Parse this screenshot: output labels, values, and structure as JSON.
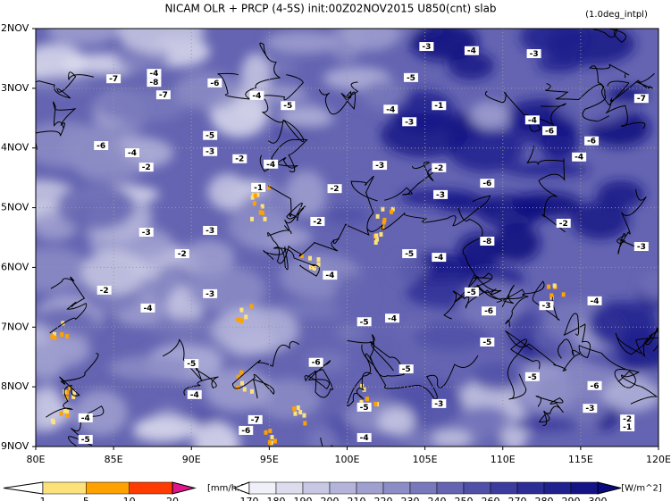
{
  "chart_data": {
    "type": "hovmoller",
    "title": "NICAM   OLR + PRCP (4-5S) init:00Z02NOV2015 U850(cnt) slab",
    "subtitle": "(1.0deg_intpl)",
    "xlim": [
      80,
      120
    ],
    "xticks": [
      {
        "value": 80,
        "label": "80E"
      },
      {
        "value": 85,
        "label": "85E"
      },
      {
        "value": 90,
        "label": "90E"
      },
      {
        "value": 95,
        "label": "95E"
      },
      {
        "value": 100,
        "label": "100E"
      },
      {
        "value": 105,
        "label": "105E"
      },
      {
        "value": 110,
        "label": "110E"
      },
      {
        "value": 115,
        "label": "115E"
      },
      {
        "value": 120,
        "label": "120E"
      }
    ],
    "ylim": [
      2,
      9
    ],
    "yticks": [
      {
        "value": 2,
        "label": "2NOV"
      },
      {
        "value": 3,
        "label": "3NOV"
      },
      {
        "value": 4,
        "label": "4NOV"
      },
      {
        "value": 5,
        "label": "5NOV"
      },
      {
        "value": 6,
        "label": "6NOV"
      },
      {
        "value": 7,
        "label": "7NOV"
      },
      {
        "value": 8,
        "label": "8NOV"
      },
      {
        "value": 9,
        "label": "9NOV"
      }
    ],
    "grid": true,
    "contour_labels": {
      "lon": [
        105.1,
        108.0,
        112.0,
        104.1,
        87.6,
        87.6,
        85.0,
        88.2,
        91.5,
        94.2,
        96.2,
        118.9,
        102.8,
        105.9,
        104.0,
        111.9,
        113.0,
        91.2,
        84.2,
        86.2,
        91.2,
        115.7,
        114.9,
        93.1,
        95.1,
        87.1,
        102.1,
        105.9,
        109.0,
        94.3,
        99.2,
        106.0,
        98.1,
        113.9,
        87.1,
        91.2,
        109.0,
        118.9,
        89.4,
        104.0,
        105.9,
        98.9,
        84.4,
        91.2,
        108.0,
        112.8,
        115.9,
        87.2,
        109.1,
        101.1,
        102.9,
        109.0,
        90.0,
        98.0,
        103.8,
        111.9,
        115.9,
        90.2,
        101.1,
        105.9,
        115.6,
        118.0,
        118.0,
        83.2,
        94.1,
        93.5,
        83.2,
        101.1
      ],
      "day": [
        2.3,
        2.37,
        2.42,
        2.82,
        2.75,
        2.9,
        2.84,
        3.11,
        2.91,
        3.12,
        3.29,
        3.17,
        3.35,
        3.29,
        3.56,
        3.53,
        3.71,
        3.79,
        3.96,
        4.08,
        4.06,
        3.88,
        4.15,
        4.18,
        4.27,
        4.32,
        4.29,
        4.33,
        4.59,
        4.66,
        4.68,
        4.78,
        5.23,
        5.26,
        5.41,
        5.38,
        5.56,
        5.65,
        5.77,
        5.77,
        5.83,
        6.13,
        6.38,
        6.44,
        6.41,
        6.64,
        6.56,
        6.68,
        6.73,
        6.91,
        6.85,
        7.25,
        7.61,
        7.59,
        7.7,
        7.83,
        7.98,
        8.13,
        8.34,
        8.28,
        8.36,
        8.54,
        8.67,
        8.52,
        8.55,
        8.73,
        8.88,
        8.85
      ],
      "values": [
        -3,
        -4,
        -3,
        -5,
        -4,
        -8,
        -7,
        -7,
        -6,
        -4,
        -5,
        -7,
        -4,
        -1,
        -3,
        -4,
        -6,
        -5,
        -6,
        -4,
        -3,
        -6,
        -4,
        -2,
        -4,
        -2,
        -3,
        -2,
        -6,
        -1,
        -2,
        -3,
        -2,
        -2,
        -3,
        -3,
        -8,
        -3,
        -2,
        -5,
        -4,
        -4,
        -2,
        -3,
        -5,
        -3,
        -4,
        -4,
        -6,
        -5,
        -4,
        -5,
        -5,
        -6,
        -5,
        -5,
        -6,
        -4,
        -5,
        -3,
        -3,
        -2,
        -1,
        -4,
        -7,
        -6,
        -5,
        -4
      ]
    },
    "colorbars": [
      {
        "name": "PRCP",
        "unit": "[mm/hr]",
        "levels": [
          1,
          5,
          10,
          20
        ],
        "colors": [
          "#ffffff",
          "#fde27c",
          "#ffa200",
          "#ff3c00",
          "#e0158a"
        ]
      },
      {
        "name": "OLR",
        "unit": "[W/m^2]",
        "levels": [
          170,
          180,
          190,
          200,
          210,
          220,
          230,
          240,
          250,
          260,
          270,
          280,
          290,
          300
        ],
        "colors": [
          "#ffffff",
          "#f0f0f8",
          "#dcdcee",
          "#c8c8e4",
          "#b4b4da",
          "#a0a0d0",
          "#8c8cc6",
          "#7878bc",
          "#6464b2",
          "#5050a8",
          "#3c3c9e",
          "#2d2d96",
          "#20208e",
          "#141486",
          "#0a0a7e"
        ]
      }
    ]
  }
}
